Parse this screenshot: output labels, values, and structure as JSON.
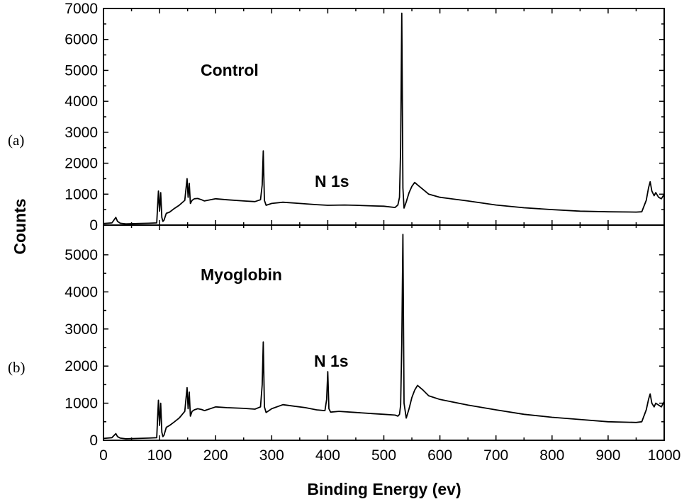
{
  "chart_data": [
    {
      "type": "line",
      "panel_label": "(a)",
      "annotation_sample": "Control",
      "annotation_peak": "N 1s",
      "xlim": [
        0,
        1000
      ],
      "ylim": [
        0,
        7000
      ],
      "yticks": [
        0,
        1000,
        2000,
        3000,
        4000,
        5000,
        6000,
        7000
      ],
      "series": [
        {
          "x": [
            0,
            15,
            22,
            25,
            30,
            40,
            60,
            80,
            95,
            98,
            100,
            102,
            104,
            106,
            108,
            112,
            118,
            125,
            135,
            145,
            149,
            151,
            153,
            155,
            158,
            162,
            168,
            175,
            180,
            200,
            220,
            250,
            270,
            280,
            283,
            285,
            287,
            290,
            300,
            320,
            350,
            380,
            400,
            430,
            450,
            480,
            500,
            520,
            525,
            528,
            530,
            532,
            534,
            536,
            540,
            545,
            550,
            555,
            560,
            570,
            580,
            600,
            650,
            700,
            750,
            800,
            850,
            900,
            950,
            960,
            968,
            972,
            975,
            978,
            982,
            985,
            990,
            995,
            1000
          ],
          "y": [
            50,
            70,
            250,
            120,
            60,
            40,
            50,
            60,
            70,
            1100,
            450,
            1050,
            250,
            120,
            160,
            380,
            420,
            520,
            640,
            800,
            1500,
            900,
            1350,
            700,
            800,
            850,
            860,
            820,
            780,
            850,
            820,
            780,
            760,
            820,
            1300,
            2400,
            800,
            640,
            700,
            740,
            700,
            660,
            640,
            650,
            640,
            620,
            610,
            570,
            650,
            900,
            2500,
            6850,
            1200,
            550,
            750,
            1050,
            1250,
            1380,
            1300,
            1150,
            1000,
            900,
            780,
            650,
            560,
            500,
            450,
            430,
            420,
            430,
            800,
            1200,
            1400,
            1100,
            950,
            1050,
            900,
            850,
            1000
          ]
        }
      ]
    },
    {
      "type": "line",
      "panel_label": "(b)",
      "annotation_sample": "Myoglobin",
      "annotation_peak": "N 1s",
      "xlim": [
        0,
        1000
      ],
      "ylim": [
        0,
        5800
      ],
      "yticks": [
        0,
        1000,
        2000,
        3000,
        4000,
        5000
      ],
      "xticks": [
        0,
        100,
        200,
        300,
        400,
        500,
        600,
        700,
        800,
        900,
        1000
      ],
      "series": [
        {
          "x": [
            0,
            15,
            22,
            25,
            30,
            40,
            60,
            80,
            95,
            98,
            100,
            102,
            104,
            106,
            108,
            112,
            118,
            125,
            135,
            145,
            149,
            151,
            153,
            155,
            158,
            162,
            168,
            175,
            180,
            200,
            220,
            250,
            270,
            280,
            283,
            285,
            287,
            290,
            300,
            320,
            340,
            360,
            380,
            395,
            398,
            400,
            402,
            405,
            420,
            450,
            480,
            500,
            520,
            525,
            528,
            530,
            532,
            534,
            536,
            540,
            545,
            550,
            555,
            560,
            570,
            580,
            600,
            650,
            700,
            750,
            800,
            850,
            900,
            950,
            960,
            968,
            972,
            975,
            978,
            982,
            985,
            990,
            995,
            1000
          ],
          "y": [
            50,
            70,
            180,
            100,
            60,
            40,
            50,
            60,
            70,
            1080,
            400,
            1000,
            220,
            100,
            140,
            350,
            400,
            480,
            600,
            780,
            1420,
            850,
            1300,
            650,
            780,
            820,
            850,
            830,
            800,
            900,
            880,
            860,
            840,
            900,
            1500,
            2650,
            900,
            750,
            850,
            960,
            920,
            880,
            820,
            800,
            1100,
            1850,
            850,
            760,
            780,
            750,
            720,
            700,
            680,
            650,
            700,
            950,
            2600,
            5550,
            1000,
            600,
            850,
            1150,
            1350,
            1480,
            1350,
            1200,
            1100,
            950,
            820,
            700,
            620,
            560,
            500,
            480,
            500,
            820,
            1100,
            1250,
            1000,
            900,
            1000,
            950,
            900,
            1050
          ]
        }
      ]
    }
  ],
  "axes": {
    "xlabel": "Binding Energy (ev)",
    "ylabel": "Counts"
  }
}
